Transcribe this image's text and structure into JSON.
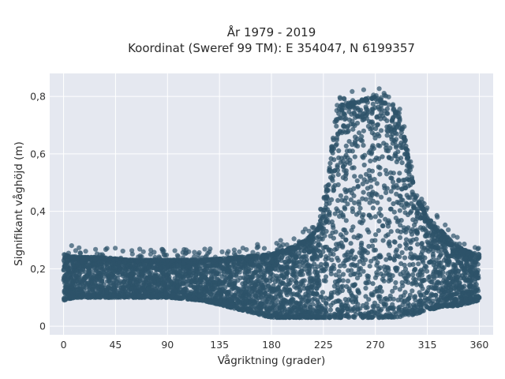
{
  "chart_data": {
    "type": "scatter",
    "title_line1": "År 1979 - 2019",
    "title_line2": "Koordinat (Sweref 99 TM): E 354047, N 6199357",
    "xlabel": "Vågriktning (grader)",
    "ylabel": "Signifikant våghöjd (m)",
    "xlim": [
      -12,
      372
    ],
    "ylim": [
      -0.03,
      0.88
    ],
    "xticks": [
      0,
      45,
      90,
      135,
      180,
      225,
      270,
      315,
      360
    ],
    "xtick_labels": [
      "0",
      "45",
      "90",
      "135",
      "180",
      "225",
      "270",
      "315",
      "360"
    ],
    "yticks": [
      0,
      0.2,
      0.4,
      0.6,
      0.8
    ],
    "ytick_labels": [
      "0",
      "0,2",
      "0,4",
      "0,6",
      "0,8"
    ],
    "grid": true,
    "point_color": "#2e5369",
    "background_color": "#e5e8f0",
    "envelope": {
      "direction": [
        0,
        10,
        30,
        60,
        90,
        120,
        150,
        180,
        195,
        210,
        220,
        225,
        230,
        235,
        240,
        250,
        260,
        270,
        278,
        285,
        290,
        295,
        300,
        305,
        310,
        315,
        320,
        330,
        340,
        350,
        360
      ],
      "min_height": [
        0.09,
        0.1,
        0.1,
        0.1,
        0.1,
        0.09,
        0.06,
        0.03,
        0.03,
        0.03,
        0.03,
        0.03,
        0.03,
        0.03,
        0.03,
        0.03,
        0.03,
        0.03,
        0.03,
        0.03,
        0.03,
        0.04,
        0.04,
        0.04,
        0.05,
        0.06,
        0.06,
        0.07,
        0.07,
        0.08,
        0.09
      ],
      "max_height": [
        0.25,
        0.24,
        0.24,
        0.23,
        0.23,
        0.23,
        0.24,
        0.25,
        0.27,
        0.3,
        0.34,
        0.4,
        0.54,
        0.72,
        0.77,
        0.78,
        0.79,
        0.8,
        0.78,
        0.76,
        0.74,
        0.66,
        0.55,
        0.45,
        0.42,
        0.38,
        0.36,
        0.32,
        0.28,
        0.26,
        0.25
      ]
    }
  }
}
